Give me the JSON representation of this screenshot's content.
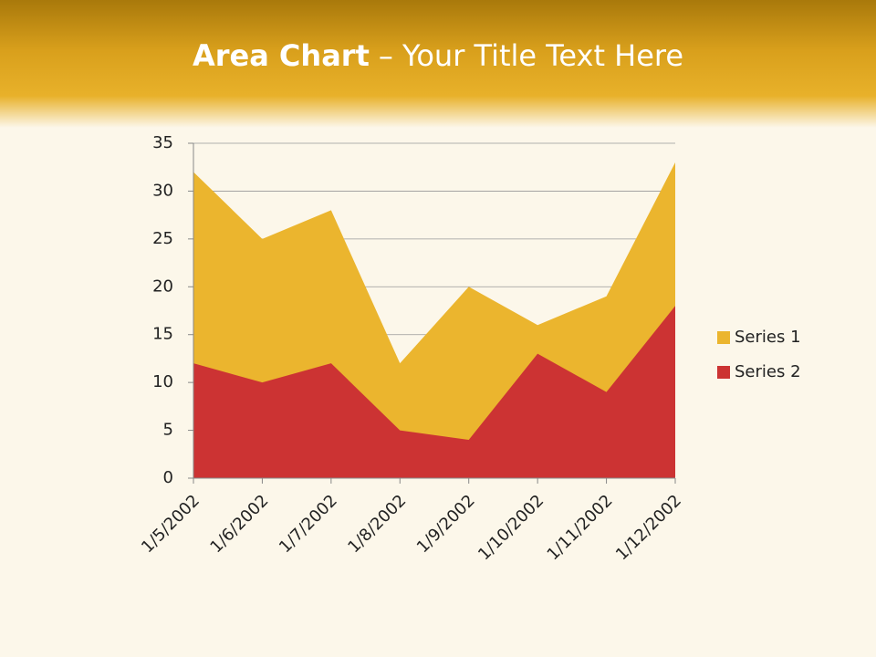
{
  "chart_data": {
    "type": "area",
    "title": [
      "Area Chart",
      "– Your Title Text Here"
    ],
    "categories": [
      "1/5/2002",
      "1/6/2002",
      "1/7/2002",
      "1/8/2002",
      "1/9/2002",
      "1/10/2002",
      "1/11/2002",
      "1/12/2002"
    ],
    "series": [
      {
        "name": "Series 1",
        "color": "#ebb52e",
        "values": [
          32,
          25,
          28,
          12,
          20,
          16,
          19,
          33
        ]
      },
      {
        "name": "Series 2",
        "color": "#cc3333",
        "values": [
          12,
          10,
          12,
          5,
          4,
          13,
          9,
          18
        ]
      }
    ],
    "ylim": [
      0,
      35
    ],
    "yticks": [
      0,
      5,
      10,
      15,
      20,
      25,
      30,
      35
    ],
    "grid": true,
    "legend": "right"
  }
}
